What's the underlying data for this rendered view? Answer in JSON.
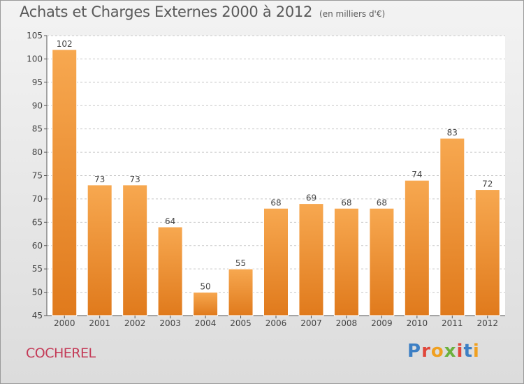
{
  "header": {
    "title": "Achats et Charges Externes 2000 à 2012",
    "unit": "(en milliers d'€)"
  },
  "footer": {
    "commune": "COCHEREL",
    "brand": "Proxiti",
    "brand_colors": [
      "#3d7fc4",
      "#e0473b",
      "#f0a020",
      "#6bb13d",
      "#e0473b",
      "#3d7fc4",
      "#f0a020"
    ]
  },
  "colors": {
    "bar_top": "#f7a850",
    "bar_bottom": "#e07a1c",
    "grid": "#c8c8c8",
    "axis": "#555555",
    "commune": "#c43a57"
  },
  "chart_data": {
    "type": "bar",
    "title": "Achats et Charges Externes 2000 à 2012",
    "subtitle": "(en milliers d'€)",
    "xlabel": "",
    "ylabel": "",
    "categories": [
      "2000",
      "2001",
      "2002",
      "2003",
      "2004",
      "2005",
      "2006",
      "2007",
      "2008",
      "2009",
      "2010",
      "2011",
      "2012"
    ],
    "values": [
      102,
      73,
      73,
      64,
      50,
      55,
      68,
      69,
      68,
      68,
      74,
      83,
      72
    ],
    "ylim": [
      45,
      105
    ],
    "yticks": [
      45,
      50,
      55,
      60,
      65,
      70,
      75,
      80,
      85,
      90,
      95,
      100,
      105
    ],
    "grid": true,
    "data_labels": true
  }
}
